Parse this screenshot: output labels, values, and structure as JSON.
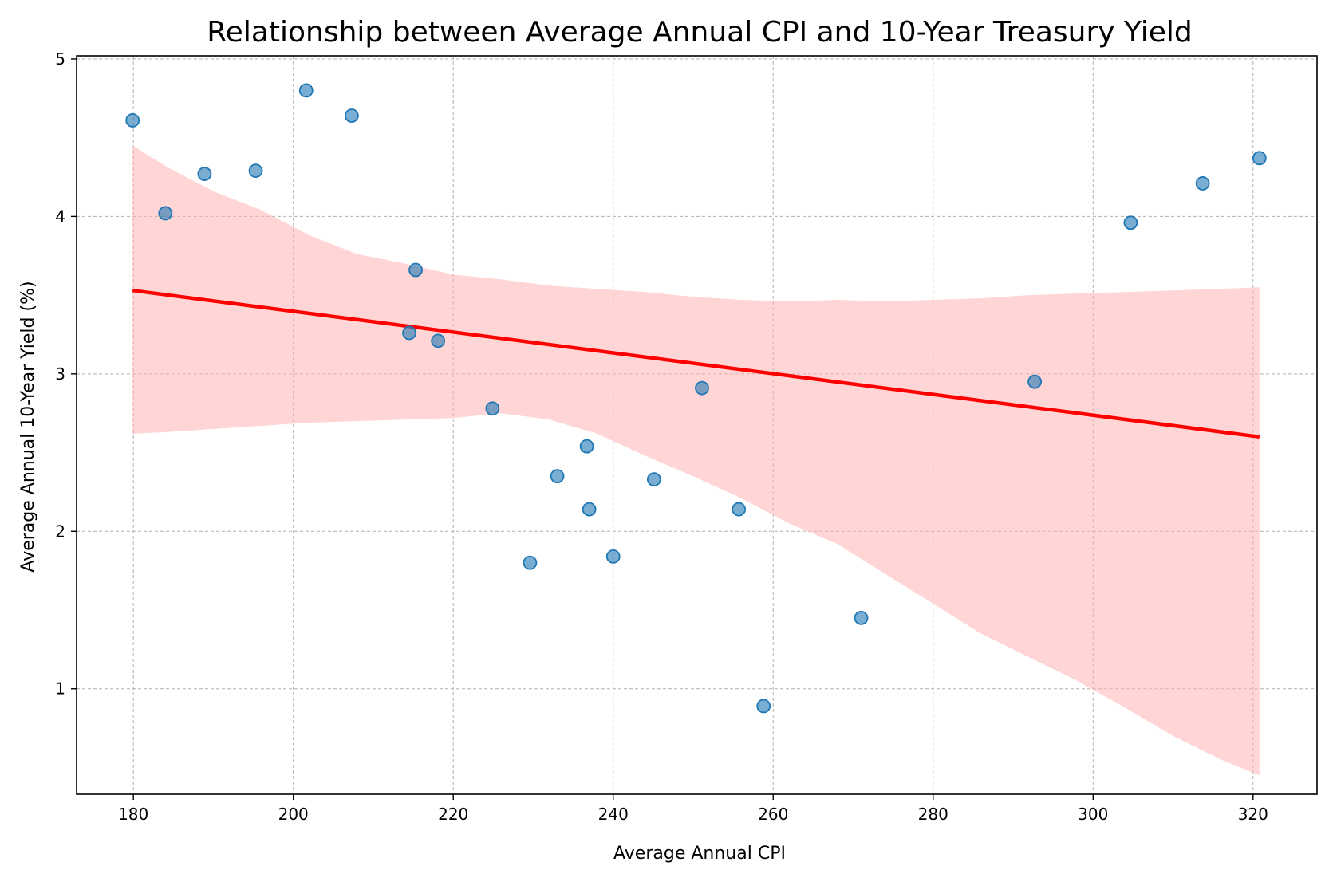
{
  "chart_data": {
    "type": "scatter",
    "title": "Relationship between Average Annual CPI and 10-Year Treasury Yield",
    "xlabel": "Average Annual CPI",
    "ylabel": "Average Annual 10-Year Yield (%)",
    "xlim": [
      172.9,
      328.0
    ],
    "ylim": [
      0.33,
      5.02
    ],
    "xticks": [
      180,
      200,
      220,
      240,
      260,
      280,
      300,
      320
    ],
    "yticks": [
      1,
      2,
      3,
      4,
      5
    ],
    "grid": true,
    "colors": {
      "points": "#1f77b4",
      "regression_line": "#ff0000",
      "confidence_band": "#ffb3b3",
      "grid": "#b0b0b0"
    },
    "points": [
      {
        "x": 179.9,
        "y": 4.61
      },
      {
        "x": 184.0,
        "y": 4.02
      },
      {
        "x": 188.9,
        "y": 4.27
      },
      {
        "x": 195.3,
        "y": 4.29
      },
      {
        "x": 201.6,
        "y": 4.8
      },
      {
        "x": 207.3,
        "y": 4.64
      },
      {
        "x": 215.3,
        "y": 3.66
      },
      {
        "x": 214.5,
        "y": 3.26
      },
      {
        "x": 218.1,
        "y": 3.21
      },
      {
        "x": 224.9,
        "y": 2.78
      },
      {
        "x": 229.6,
        "y": 1.8
      },
      {
        "x": 233.0,
        "y": 2.35
      },
      {
        "x": 236.7,
        "y": 2.54
      },
      {
        "x": 237.0,
        "y": 2.14
      },
      {
        "x": 240.0,
        "y": 1.84
      },
      {
        "x": 245.1,
        "y": 2.33
      },
      {
        "x": 251.1,
        "y": 2.91
      },
      {
        "x": 255.7,
        "y": 2.14
      },
      {
        "x": 258.8,
        "y": 0.89
      },
      {
        "x": 271.0,
        "y": 1.45
      },
      {
        "x": 292.7,
        "y": 2.95
      },
      {
        "x": 304.7,
        "y": 3.96
      },
      {
        "x": 313.7,
        "y": 4.21
      },
      {
        "x": 320.8,
        "y": 4.37
      }
    ],
    "regression_line": {
      "x": [
        179.9,
        320.8
      ],
      "y": [
        3.53,
        2.6
      ]
    },
    "confidence_band": {
      "x": [
        179.9,
        184.0,
        190.0,
        196.0,
        202.0,
        208.0,
        214.0,
        220.0,
        226.0,
        232.0,
        238.0,
        244.0,
        250.0,
        256.0,
        262.0,
        268.0,
        274.0,
        280.0,
        286.0,
        292.0,
        298.0,
        304.0,
        310.0,
        316.0,
        320.8
      ],
      "upper": [
        4.45,
        4.32,
        4.16,
        4.04,
        3.88,
        3.76,
        3.7,
        3.63,
        3.6,
        3.56,
        3.54,
        3.52,
        3.49,
        3.47,
        3.46,
        3.47,
        3.46,
        3.47,
        3.48,
        3.5,
        3.51,
        3.52,
        3.53,
        3.54,
        3.55
      ],
      "lower": [
        2.62,
        2.63,
        2.65,
        2.67,
        2.69,
        2.7,
        2.71,
        2.72,
        2.75,
        2.71,
        2.62,
        2.48,
        2.35,
        2.21,
        2.05,
        1.92,
        1.73,
        1.54,
        1.35,
        1.2,
        1.05,
        0.88,
        0.7,
        0.55,
        0.45
      ]
    }
  }
}
